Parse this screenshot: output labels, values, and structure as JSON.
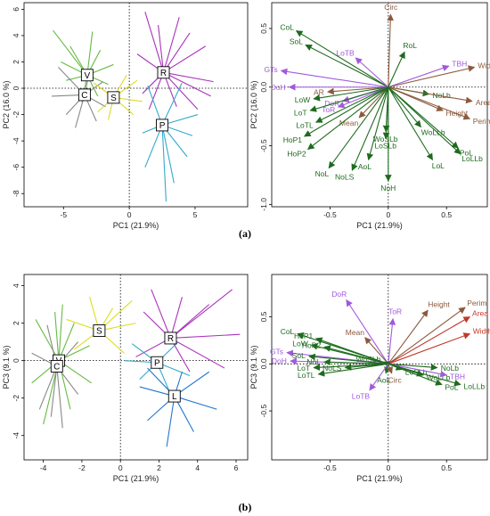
{
  "figure_labels": [
    "(a)",
    "(b)"
  ],
  "colors": {
    "green_arrow": "#1e6b1e",
    "brown_arrow": "#8b5a3c",
    "purple_arrow": "#a05adc",
    "red_arrow": "#c0392b",
    "group_V": "#66bb44",
    "group_C": "#888888",
    "group_S": "#dddd22",
    "group_R": "#aa33bb",
    "group_P": "#33aacc",
    "group_L": "#2277cc"
  },
  "chart_data": [
    {
      "type": "scatter",
      "panel": "a-left",
      "xlabel": "PC1 (21.9%)",
      "ylabel": "PC2 (16.0 %)",
      "xlim": [
        -8,
        9
      ],
      "ylim": [
        -9,
        6.5
      ],
      "xticks": [
        -5,
        0,
        5
      ],
      "yticks": [
        -8,
        -6,
        -4,
        -2,
        0,
        2,
        4,
        6
      ],
      "groups": [
        {
          "name": "V",
          "centroid": [
            -3.2,
            1.0
          ],
          "color": "#66bb44",
          "spokes": [
            [
              -5.8,
              4.4
            ],
            [
              -4.5,
              3.2
            ],
            [
              -2.8,
              4.3
            ],
            [
              -2.2,
              2.9
            ],
            [
              -1.6,
              0.3
            ],
            [
              -4.8,
              0.6
            ],
            [
              -3.6,
              -1.1
            ],
            [
              -1.2,
              1.8
            ],
            [
              -5.2,
              2.0
            ],
            [
              -2.4,
              -0.6
            ]
          ]
        },
        {
          "name": "C",
          "centroid": [
            -3.4,
            -0.5
          ],
          "color": "#888888",
          "spokes": [
            [
              -5.4,
              1.6
            ],
            [
              -4.8,
              -2.0
            ],
            [
              -2.5,
              -2.5
            ],
            [
              -2.0,
              0.5
            ],
            [
              -5.9,
              -0.6
            ],
            [
              -3.0,
              1.4
            ],
            [
              -4.1,
              -3.0
            ],
            [
              -1.8,
              -1.4
            ]
          ]
        },
        {
          "name": "S",
          "centroid": [
            -1.2,
            -0.7
          ],
          "color": "#dddd22",
          "spokes": [
            [
              0.6,
              0.6
            ],
            [
              0.3,
              -2.0
            ],
            [
              -2.4,
              -1.8
            ],
            [
              -2.7,
              0.4
            ],
            [
              -0.2,
              1.0
            ],
            [
              1.0,
              -1.0
            ],
            [
              -1.6,
              -2.4
            ]
          ]
        },
        {
          "name": "R",
          "centroid": [
            2.6,
            1.2
          ],
          "color": "#aa33bb",
          "spokes": [
            [
              1.2,
              5.8
            ],
            [
              3.8,
              5.4
            ],
            [
              5.8,
              3.2
            ],
            [
              6.4,
              0.5
            ],
            [
              5.2,
              -1.6
            ],
            [
              3.6,
              -1.4
            ],
            [
              1.0,
              -0.4
            ],
            [
              0.6,
              2.6
            ],
            [
              2.2,
              4.8
            ],
            [
              4.6,
              4.2
            ],
            [
              6.2,
              -0.6
            ],
            [
              1.5,
              -1.6
            ]
          ]
        },
        {
          "name": "P",
          "centroid": [
            2.5,
            -2.8
          ],
          "color": "#33aacc",
          "spokes": [
            [
              1.4,
              0.2
            ],
            [
              4.0,
              0.4
            ],
            [
              5.2,
              -2.0
            ],
            [
              4.4,
              -5.2
            ],
            [
              2.8,
              -8.6
            ],
            [
              1.2,
              -6.0
            ],
            [
              1.0,
              -3.4
            ],
            [
              3.4,
              -7.2
            ],
            [
              4.8,
              -3.6
            ]
          ]
        }
      ]
    },
    {
      "type": "biplot",
      "panel": "a-right",
      "xlabel": "PC1 (21.9%)",
      "ylabel": "PC2 (16.0 %)",
      "xlim": [
        -1.0,
        0.85
      ],
      "ylim": [
        -1.02,
        0.72
      ],
      "xticks": [
        -0.5,
        0.0,
        0.5
      ],
      "yticks": [
        -1.0,
        -0.5,
        0.0,
        0.5
      ],
      "arrows": [
        {
          "label": "Circ",
          "x": 0.02,
          "y": 0.62,
          "color": "#8b5a3c"
        },
        {
          "label": "CoL",
          "x": -0.79,
          "y": 0.48,
          "color": "#1e6b1e"
        },
        {
          "label": "SoL",
          "x": -0.71,
          "y": 0.36,
          "color": "#1e6b1e"
        },
        {
          "label": "LoTB",
          "x": -0.28,
          "y": 0.25,
          "color": "#a05adc"
        },
        {
          "label": "RoL",
          "x": 0.14,
          "y": 0.3,
          "color": "#1e6b1e"
        },
        {
          "label": "GTs",
          "x": -0.92,
          "y": 0.14,
          "color": "#a05adc"
        },
        {
          "label": "TBH",
          "x": 0.52,
          "y": 0.18,
          "color": "#a05adc"
        },
        {
          "label": "Width",
          "x": 0.74,
          "y": 0.17,
          "color": "#8b5a3c"
        },
        {
          "label": "DoH",
          "x": -0.85,
          "y": 0.0,
          "color": "#a05adc"
        },
        {
          "label": "AR",
          "x": -0.52,
          "y": -0.04,
          "color": "#8b5a3c"
        },
        {
          "label": "LoW",
          "x": -0.64,
          "y": -0.1,
          "color": "#1e6b1e"
        },
        {
          "label": "DoR",
          "x": -0.39,
          "y": -0.12,
          "color": "#a05adc"
        },
        {
          "label": "NoLb",
          "x": 0.35,
          "y": -0.06,
          "color": "#1e6b1e"
        },
        {
          "label": "Area",
          "x": 0.72,
          "y": -0.12,
          "color": "#8b5a3c"
        },
        {
          "label": "LoT",
          "x": -0.67,
          "y": -0.2,
          "color": "#1e6b1e"
        },
        {
          "label": "ToR",
          "x": -0.43,
          "y": -0.17,
          "color": "#a05adc"
        },
        {
          "label": "LoTL",
          "x": -0.62,
          "y": -0.3,
          "color": "#1e6b1e"
        },
        {
          "label": "Mean",
          "x": -0.25,
          "y": -0.26,
          "color": "#8b5a3c"
        },
        {
          "label": "Height",
          "x": 0.47,
          "y": -0.2,
          "color": "#8b5a3c"
        },
        {
          "label": "Perim",
          "x": 0.7,
          "y": -0.27,
          "color": "#8b5a3c"
        },
        {
          "label": "HoP1",
          "x": -0.72,
          "y": -0.42,
          "color": "#1e6b1e"
        },
        {
          "label": "WoSLb",
          "x": -0.02,
          "y": -0.38,
          "color": "#1e6b1e"
        },
        {
          "label": "LoSLb",
          "x": -0.02,
          "y": -0.44,
          "color": "#1e6b1e"
        },
        {
          "label": "WoLLb",
          "x": 0.28,
          "y": -0.34,
          "color": "#1e6b1e"
        },
        {
          "label": "HoP2",
          "x": -0.69,
          "y": -0.53,
          "color": "#1e6b1e"
        },
        {
          "label": "PoL",
          "x": 0.6,
          "y": -0.52,
          "color": "#1e6b1e"
        },
        {
          "label": "LoLLb",
          "x": 0.62,
          "y": -0.57,
          "color": "#1e6b1e"
        },
        {
          "label": "AoL",
          "x": -0.17,
          "y": -0.62,
          "color": "#1e6b1e"
        },
        {
          "label": "LoL",
          "x": 0.38,
          "y": -0.62,
          "color": "#1e6b1e"
        },
        {
          "label": "NoL",
          "x": -0.51,
          "y": -0.69,
          "color": "#1e6b1e"
        },
        {
          "label": "NoLS",
          "x": -0.31,
          "y": -0.71,
          "color": "#1e6b1e"
        },
        {
          "label": "NoH",
          "x": 0.0,
          "y": -0.8,
          "color": "#1e6b1e"
        }
      ]
    },
    {
      "type": "scatter",
      "panel": "b-left",
      "xlabel": "PC1 (21.9%)",
      "ylabel": "PC3 (9.1 %)",
      "xlim": [
        -5,
        6.6
      ],
      "ylim": [
        -5.3,
        4.6
      ],
      "xticks": [
        -4,
        -2,
        0,
        2,
        4,
        6
      ],
      "yticks": [
        -4,
        -2,
        0,
        2,
        4
      ],
      "groups": [
        {
          "name": "V",
          "centroid": [
            -3.2,
            0.0
          ],
          "color": "#66bb44",
          "spokes": [
            [
              -3.4,
              2.6
            ],
            [
              -4.4,
              2.2
            ],
            [
              -2.4,
              2.0
            ],
            [
              -1.6,
              0.8
            ],
            [
              -4.6,
              -1.2
            ],
            [
              -2.6,
              -2.6
            ],
            [
              -4.0,
              -3.4
            ],
            [
              -1.5,
              -1.2
            ],
            [
              -3.0,
              3.0
            ]
          ]
        },
        {
          "name": "C",
          "centroid": [
            -3.3,
            -0.3
          ],
          "color": "#888888",
          "spokes": [
            [
              -3.8,
              1.9
            ],
            [
              -2.2,
              1.0
            ],
            [
              -4.2,
              -2.6
            ],
            [
              -3.0,
              -3.6
            ],
            [
              -2.2,
              -1.8
            ],
            [
              -4.6,
              0.4
            ],
            [
              -3.6,
              -3.0
            ]
          ]
        },
        {
          "name": "S",
          "centroid": [
            -1.1,
            1.6
          ],
          "color": "#dddd22",
          "spokes": [
            [
              0.6,
              3.2
            ],
            [
              0.8,
              2.0
            ],
            [
              -1.6,
              3.4
            ],
            [
              -2.8,
              2.2
            ],
            [
              -2.4,
              0.6
            ],
            [
              0.2,
              0.4
            ],
            [
              -0.4,
              2.8
            ]
          ]
        },
        {
          "name": "R",
          "centroid": [
            2.6,
            1.2
          ],
          "color": "#aa33bb",
          "spokes": [
            [
              1.6,
              3.8
            ],
            [
              3.2,
              3.4
            ],
            [
              5.8,
              3.8
            ],
            [
              6.2,
              1.4
            ],
            [
              5.4,
              -0.4
            ],
            [
              3.6,
              -0.6
            ],
            [
              1.2,
              2.6
            ],
            [
              0.8,
              0.2
            ],
            [
              4.6,
              3.0
            ]
          ]
        },
        {
          "name": "P",
          "centroid": [
            1.9,
            -0.1
          ],
          "color": "#33aacc",
          "spokes": [
            [
              0.6,
              0.9
            ],
            [
              3.0,
              1.0
            ],
            [
              3.6,
              -0.8
            ],
            [
              1.0,
              -1.0
            ],
            [
              0.2,
              0.0
            ],
            [
              2.6,
              -1.8
            ]
          ]
        },
        {
          "name": "L",
          "centroid": [
            2.8,
            -1.9
          ],
          "color": "#2277cc",
          "spokes": [
            [
              1.4,
              -0.4
            ],
            [
              4.6,
              -0.6
            ],
            [
              5.0,
              -2.6
            ],
            [
              3.8,
              -3.8
            ],
            [
              2.4,
              -4.6
            ],
            [
              1.4,
              -3.2
            ],
            [
              1.0,
              -1.4
            ],
            [
              3.2,
              -0.6
            ]
          ]
        }
      ]
    },
    {
      "type": "biplot",
      "panel": "b-right",
      "xlabel": "PC1 (21.9%)",
      "ylabel": "PC3 (9.1 %)",
      "xlim": [
        -1.0,
        0.85
      ],
      "ylim": [
        -1.02,
        0.95
      ],
      "xticks": [
        -0.5,
        0.0,
        0.5
      ],
      "yticks": [
        -0.5,
        0.0,
        0.5
      ],
      "arrows": [
        {
          "label": "Perim",
          "x": 0.66,
          "y": 0.6,
          "color": "#8b5a3c"
        },
        {
          "label": "Height",
          "x": 0.34,
          "y": 0.57,
          "color": "#8b5a3c"
        },
        {
          "label": "ToR",
          "x": 0.04,
          "y": 0.48,
          "color": "#a05adc"
        },
        {
          "label": "DoR",
          "x": -0.36,
          "y": 0.68,
          "color": "#a05adc"
        },
        {
          "label": "Area",
          "x": 0.7,
          "y": 0.5,
          "color": "#c0392b"
        },
        {
          "label": "Width",
          "x": 0.7,
          "y": 0.32,
          "color": "#c0392b"
        },
        {
          "label": "CoL",
          "x": -0.78,
          "y": 0.32,
          "color": "#1e6b1e"
        },
        {
          "label": "HoP1",
          "x": -0.62,
          "y": 0.27,
          "color": "#1e6b1e"
        },
        {
          "label": "LoW",
          "x": -0.66,
          "y": 0.2,
          "color": "#1e6b1e"
        },
        {
          "label": "HoP2",
          "x": -0.55,
          "y": 0.18,
          "color": "#1e6b1e"
        },
        {
          "label": "Mean",
          "x": -0.2,
          "y": 0.28,
          "color": "#8b5a3c"
        },
        {
          "label": "GTs",
          "x": -0.87,
          "y": 0.12,
          "color": "#a05adc"
        },
        {
          "label": "SoL",
          "x": -0.68,
          "y": 0.08,
          "color": "#1e6b1e"
        },
        {
          "label": "DoH",
          "x": -0.84,
          "y": 0.03,
          "color": "#a05adc"
        },
        {
          "label": "NoL",
          "x": -0.55,
          "y": 0.02,
          "color": "#1e6b1e"
        },
        {
          "label": "WoSLb",
          "x": -0.04,
          "y": 0.02,
          "color": "#1e6b1e"
        },
        {
          "label": "LoT",
          "x": -0.64,
          "y": -0.04,
          "color": "#1e6b1e"
        },
        {
          "label": "NoLS",
          "x": -0.37,
          "y": -0.04,
          "color": "#1e6b1e"
        },
        {
          "label": "LoTL",
          "x": -0.6,
          "y": -0.11,
          "color": "#1e6b1e"
        },
        {
          "label": "NoLb",
          "x": 0.42,
          "y": -0.04,
          "color": "#1e6b1e"
        },
        {
          "label": "AoL",
          "x": -0.02,
          "y": -0.1,
          "color": "#1e6b1e"
        },
        {
          "label": "Circ",
          "x": 0.03,
          "y": -0.1,
          "color": "#8b5a3c"
        },
        {
          "label": "LoSLb",
          "x": 0.12,
          "y": -0.06,
          "color": "#1e6b1e"
        },
        {
          "label": "WoLLb",
          "x": 0.3,
          "y": -0.12,
          "color": "#1e6b1e"
        },
        {
          "label": "TBH",
          "x": 0.5,
          "y": -0.12,
          "color": "#a05adc"
        },
        {
          "label": "PoL",
          "x": 0.46,
          "y": -0.22,
          "color": "#1e6b1e"
        },
        {
          "label": "LoLLb",
          "x": 0.62,
          "y": -0.22,
          "color": "#1e6b1e"
        },
        {
          "label": "LoTB",
          "x": -0.16,
          "y": -0.28,
          "color": "#a05adc"
        }
      ]
    }
  ]
}
